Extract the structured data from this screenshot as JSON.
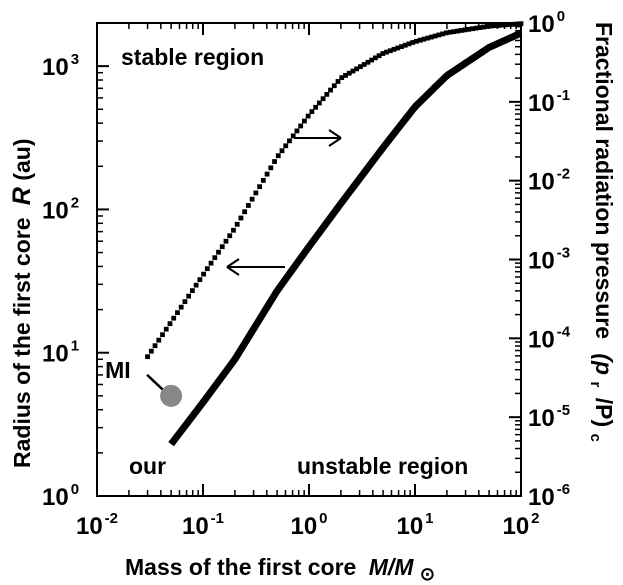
{
  "chart_data": {
    "type": "line",
    "xlabel_main": "Mass of the first core",
    "xlabel_var": "M/M",
    "xlabel_sub": "⊙",
    "ylabel_main": "Radius of the first core",
    "ylabel_var": "R",
    "ylabel_unit": "(au)",
    "y2label_main": "Fractional radiation pressure",
    "y2label_var_open": "(p",
    "y2label_sub_r": "r",
    "y2label_mid": "/P)",
    "y2label_sub_c": "c",
    "x_scale": "log",
    "y_scale": "log",
    "y2_scale": "log",
    "xlim": [
      0.01,
      100
    ],
    "ylim": [
      1,
      2000
    ],
    "y2lim": [
      1e-06,
      1
    ],
    "x_ticks": [
      {
        "base": "10",
        "exp": "-2",
        "value": 0.01
      },
      {
        "base": "10",
        "exp": "-1",
        "value": 0.1
      },
      {
        "base": "10",
        "exp": "0",
        "value": 1
      },
      {
        "base": "10",
        "exp": "1",
        "value": 10
      },
      {
        "base": "10",
        "exp": "2",
        "value": 100
      }
    ],
    "y_ticks": [
      {
        "base": "10",
        "exp": "0",
        "value": 1
      },
      {
        "base": "10",
        "exp": "1",
        "value": 10
      },
      {
        "base": "10",
        "exp": "2",
        "value": 100
      },
      {
        "base": "10",
        "exp": "3",
        "value": 1000
      }
    ],
    "y2_ticks": [
      {
        "base": "10",
        "exp": "-6",
        "value": 1e-06
      },
      {
        "base": "10",
        "exp": "-5",
        "value": 1e-05
      },
      {
        "base": "10",
        "exp": "-4",
        "value": 0.0001
      },
      {
        "base": "10",
        "exp": "-3",
        "value": 0.001
      },
      {
        "base": "10",
        "exp": "-2",
        "value": 0.01
      },
      {
        "base": "10",
        "exp": "-1",
        "value": 0.1
      },
      {
        "base": "10",
        "exp": "0",
        "value": 1
      }
    ],
    "series": [
      {
        "axis": "left",
        "style": "thick-solid",
        "color": "#000000",
        "x": [
          0.05,
          0.1,
          0.2,
          0.5,
          1,
          2,
          5,
          10,
          20,
          50,
          100
        ],
        "y": [
          2.3,
          4.5,
          9,
          27,
          55,
          110,
          270,
          520,
          860,
          1350,
          1700
        ]
      },
      {
        "axis": "right",
        "style": "small-square-markers",
        "color": "#000000",
        "x": [
          0.03,
          0.05,
          0.1,
          0.2,
          0.5,
          1,
          2,
          5,
          10,
          20,
          50,
          100
        ],
        "y": [
          5.85e-05,
          0.000161,
          0.000636,
          0.0025,
          0.0198,
          0.0682,
          0.2,
          0.412,
          0.58,
          0.753,
          0.912,
          0.98
        ]
      }
    ],
    "point": {
      "label": "MI",
      "x": 0.05,
      "y": 5,
      "color": "#888888"
    },
    "annotations": [
      {
        "text": "stable region",
        "name": "stable-region-label"
      },
      {
        "text": "unstable region",
        "name": "unstable-region-label"
      },
      {
        "text": "our",
        "name": "our-label"
      }
    ],
    "arrows": [
      {
        "direction": "right",
        "points_to_axis": "right"
      },
      {
        "direction": "left",
        "points_to_axis": "left"
      }
    ],
    "grid": false,
    "legend": "none"
  }
}
